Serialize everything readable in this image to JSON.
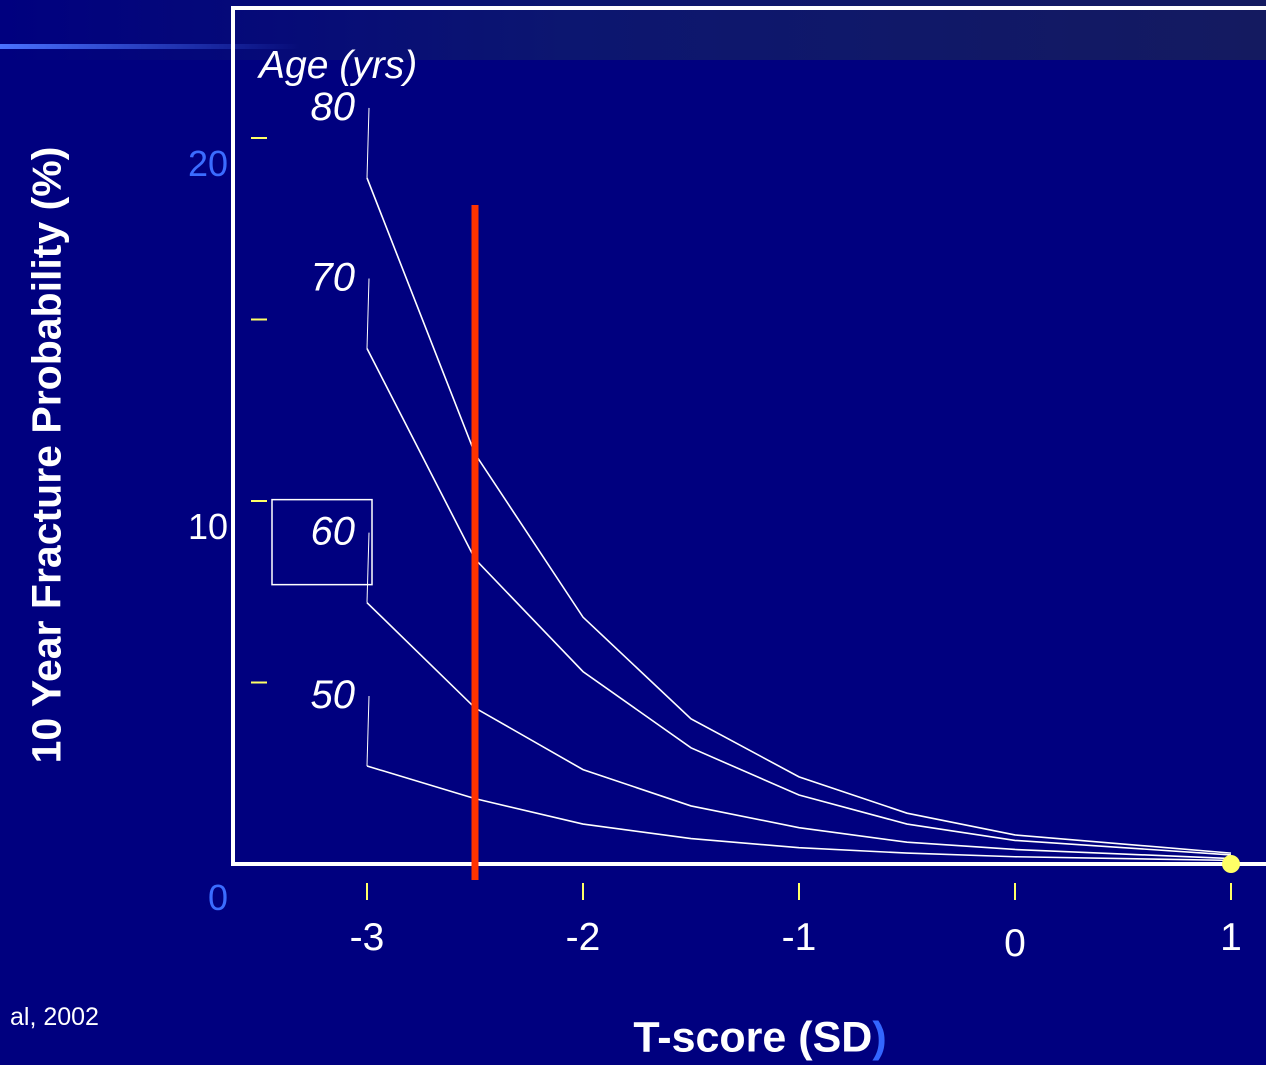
{
  "citation": "al, 2002",
  "chart_data": {
    "type": "line",
    "ylabel": "10 Year Fracture Probability (%)",
    "xlabel_main": "T-score  (SD",
    "xlabel_paren": ")",
    "legend_title": "Age (yrs)",
    "xlim": [
      -3.7,
      1.1
    ],
    "ylim": [
      0,
      22
    ],
    "x_ticks": [
      {
        "value": -3,
        "label": "-3"
      },
      {
        "value": -2,
        "label": "-2"
      },
      {
        "value": -1,
        "label": "-1"
      },
      {
        "value": 0,
        "label": "0"
      },
      {
        "value": 1,
        "label": "1"
      }
    ],
    "y_labels": [
      {
        "value": 0,
        "label": "0",
        "color": "#3b6cff"
      },
      {
        "value": 10,
        "label": "10",
        "color": "#ffffff"
      },
      {
        "value": 20,
        "label": "20",
        "color": "#3b6cff"
      }
    ],
    "y_minor_ticks": [
      5,
      10,
      15,
      20
    ],
    "x": [
      -3,
      -2.5,
      -2,
      -1.5,
      -1,
      -0.5,
      0,
      1
    ],
    "series": [
      {
        "name": "80",
        "boxed": false,
        "values": [
          18.9,
          11.3,
          6.8,
          4.0,
          2.4,
          1.4,
          0.8,
          0.3
        ]
      },
      {
        "name": "70",
        "boxed": false,
        "values": [
          14.2,
          8.4,
          5.3,
          3.2,
          1.9,
          1.1,
          0.65,
          0.25
        ]
      },
      {
        "name": "60",
        "boxed": true,
        "values": [
          7.2,
          4.3,
          2.6,
          1.6,
          1.0,
          0.6,
          0.4,
          0.15
        ]
      },
      {
        "name": "50",
        "boxed": false,
        "values": [
          2.7,
          1.8,
          1.1,
          0.7,
          0.45,
          0.3,
          0.2,
          0.1
        ]
      }
    ],
    "threshold_line": {
      "x": -2.5,
      "color": "#ff3300"
    },
    "marker_point": {
      "x": 1,
      "y": 0,
      "color": "#ffff66"
    },
    "colors": {
      "background": "#00007f",
      "lines": "#ffffff",
      "ticks": "#ffff66"
    }
  }
}
